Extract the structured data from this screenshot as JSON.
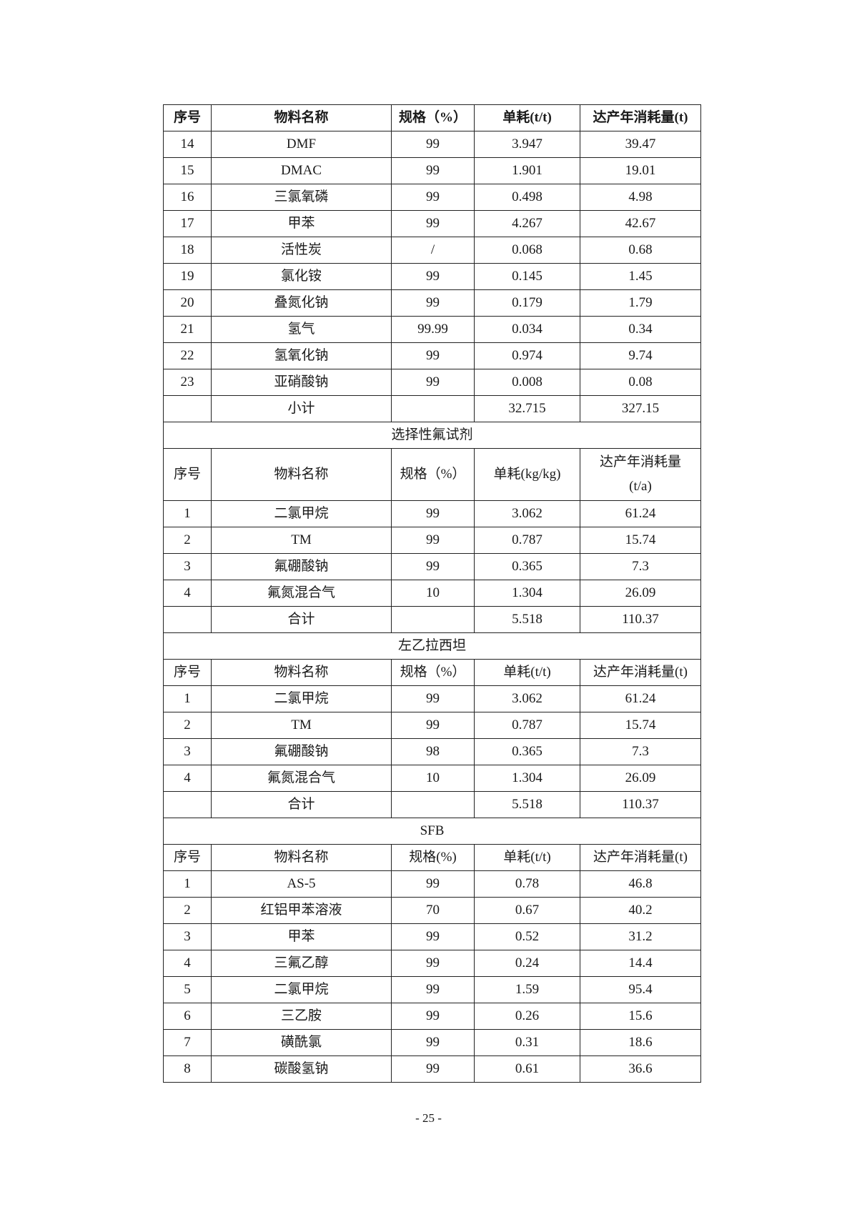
{
  "table": {
    "header": [
      "序号",
      "物料名称",
      "规格（%）",
      "单耗(t/t)",
      "达产年消耗量(t)"
    ],
    "rows_part1": [
      [
        "14",
        "DMF",
        "99",
        "3.947",
        "39.47"
      ],
      [
        "15",
        "DMAC",
        "99",
        "1.901",
        "19.01"
      ],
      [
        "16",
        "三氯氧磷",
        "99",
        "0.498",
        "4.98"
      ],
      [
        "17",
        "甲苯",
        "99",
        "4.267",
        "42.67"
      ],
      [
        "18",
        "活性炭",
        "/",
        "0.068",
        "0.68"
      ],
      [
        "19",
        "氯化铵",
        "99",
        "0.145",
        "1.45"
      ],
      [
        "20",
        "叠氮化钠",
        "99",
        "0.179",
        "1.79"
      ],
      [
        "21",
        "氢气",
        "99.99",
        "0.034",
        "0.34"
      ],
      [
        "22",
        "氢氧化钠",
        "99",
        "0.974",
        "9.74"
      ],
      [
        "23",
        "亚硝酸钠",
        "99",
        "0.008",
        "0.08"
      ]
    ],
    "subtotal1": [
      "",
      "小计",
      "",
      "32.715",
      "327.15"
    ],
    "section2": {
      "title": "选择性氟试剂",
      "header": [
        "序号",
        "物料名称",
        "规格（%）",
        "单耗(kg/kg)",
        "达产年消耗量",
        "(t/a)"
      ],
      "rows": [
        [
          "1",
          "二氯甲烷",
          "99",
          "3.062",
          "61.24"
        ],
        [
          "2",
          "TM",
          "99",
          "0.787",
          "15.74"
        ],
        [
          "3",
          "氟硼酸钠",
          "99",
          "0.365",
          "7.3"
        ],
        [
          "4",
          "氟氮混合气",
          "10",
          "1.304",
          "26.09"
        ]
      ],
      "total": [
        "",
        "合计",
        "",
        "5.518",
        "110.37"
      ]
    },
    "section3": {
      "title": "左乙拉西坦",
      "header": [
        "序号",
        "物料名称",
        "规格（%）",
        "单耗(t/t)",
        "达产年消耗量(t)"
      ],
      "rows": [
        [
          "1",
          "二氯甲烷",
          "99",
          "3.062",
          "61.24"
        ],
        [
          "2",
          "TM",
          "99",
          "0.787",
          "15.74"
        ],
        [
          "3",
          "氟硼酸钠",
          "98",
          "0.365",
          "7.3"
        ],
        [
          "4",
          "氟氮混合气",
          "10",
          "1.304",
          "26.09"
        ]
      ],
      "total": [
        "",
        "合计",
        "",
        "5.518",
        "110.37"
      ]
    },
    "section4": {
      "title": "SFB",
      "header": [
        "序号",
        "物料名称",
        "规格(%)",
        "单耗(t/t)",
        "达产年消耗量(t)"
      ],
      "rows": [
        [
          "1",
          "AS-5",
          "99",
          "0.78",
          "46.8"
        ],
        [
          "2",
          "红铝甲苯溶液",
          "70",
          "0.67",
          "40.2"
        ],
        [
          "3",
          "甲苯",
          "99",
          "0.52",
          "31.2"
        ],
        [
          "4",
          "三氟乙醇",
          "99",
          "0.24",
          "14.4"
        ],
        [
          "5",
          "二氯甲烷",
          "99",
          "1.59",
          "95.4"
        ],
        [
          "6",
          "三乙胺",
          "99",
          "0.26",
          "15.6"
        ],
        [
          "7",
          "磺酰氯",
          "99",
          "0.31",
          "18.6"
        ],
        [
          "8",
          "碳酸氢钠",
          "99",
          "0.61",
          "36.6"
        ]
      ]
    }
  },
  "page_number": "- 25 -"
}
